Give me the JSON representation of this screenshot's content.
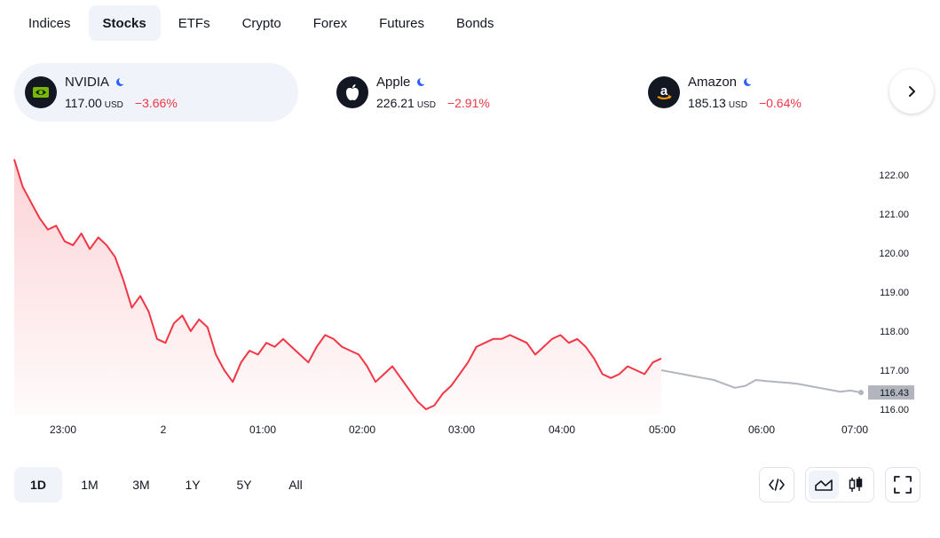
{
  "tabs": [
    {
      "label": "Indices",
      "active": false
    },
    {
      "label": "Stocks",
      "active": true
    },
    {
      "label": "ETFs",
      "active": false
    },
    {
      "label": "Crypto",
      "active": false
    },
    {
      "label": "Forex",
      "active": false
    },
    {
      "label": "Futures",
      "active": false
    },
    {
      "label": "Bonds",
      "active": false
    }
  ],
  "symbols": [
    {
      "name": "NVIDIA",
      "price": "117.00",
      "currency": "USD",
      "change": "−3.66%",
      "logo_icon": "nvidia-logo",
      "active": true
    },
    {
      "name": "Apple",
      "price": "226.21",
      "currency": "USD",
      "change": "−2.91%",
      "logo_icon": "apple-logo",
      "active": false
    },
    {
      "name": "Amazon",
      "price": "185.13",
      "currency": "USD",
      "change": "−0.64%",
      "logo_icon": "amazon-logo",
      "active": false
    }
  ],
  "ranges": [
    {
      "label": "1D",
      "active": true
    },
    {
      "label": "1M",
      "active": false
    },
    {
      "label": "3M",
      "active": false
    },
    {
      "label": "1Y",
      "active": false
    },
    {
      "label": "5Y",
      "active": false
    },
    {
      "label": "All",
      "active": false
    }
  ],
  "colors": {
    "accent": "#2962ff",
    "negative": "#f23645",
    "extended_line": "#b2b5be",
    "active_bg": "#f0f3fa"
  },
  "chart_data": {
    "type": "area",
    "y_ticks": [
      "122.00",
      "121.00",
      "120.00",
      "119.00",
      "118.00",
      "117.00",
      "116.00"
    ],
    "ylim": [
      115.8,
      122.4
    ],
    "x_ticks": [
      "23:00",
      "2",
      "01:00",
      "02:00",
      "03:00",
      "04:00",
      "05:00",
      "06:00",
      "07:00"
    ],
    "current_value_label": "116.43",
    "series": [
      {
        "segment": "regular",
        "values": [
          122.4,
          121.7,
          121.3,
          120.9,
          120.6,
          120.7,
          120.3,
          120.2,
          120.5,
          120.1,
          120.4,
          120.2,
          119.9,
          119.3,
          118.6,
          118.9,
          118.5,
          117.8,
          117.7,
          118.2,
          118.4,
          118.0,
          118.3,
          118.1,
          117.4,
          117.0,
          116.7,
          117.2,
          117.5,
          117.4,
          117.7,
          117.6,
          117.8,
          117.6,
          117.4,
          117.2,
          117.6,
          117.9,
          117.8,
          117.6,
          117.5,
          117.4,
          117.1,
          116.7,
          116.9,
          117.1,
          116.8,
          116.5,
          116.2,
          116.0,
          116.1,
          116.4,
          116.6,
          116.9,
          117.2,
          117.6,
          117.7,
          117.8,
          117.8,
          117.9,
          117.8,
          117.7,
          117.4,
          117.6,
          117.8,
          117.9,
          117.7,
          117.8,
          117.6,
          117.3,
          116.9,
          116.8,
          116.9,
          117.1,
          117.0,
          116.9,
          117.2,
          117.3
        ]
      },
      {
        "segment": "extended",
        "values": [
          117.0,
          116.95,
          116.9,
          116.85,
          116.8,
          116.75,
          116.65,
          116.55,
          116.6,
          116.75,
          116.72,
          116.7,
          116.68,
          116.65,
          116.6,
          116.55,
          116.5,
          116.45,
          116.48,
          116.43
        ]
      }
    ]
  }
}
